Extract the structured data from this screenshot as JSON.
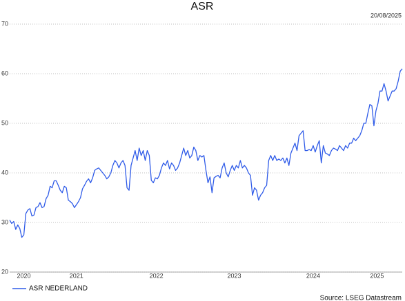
{
  "chart_data": {
    "type": "line",
    "title": "ASR",
    "date": "20/08/2025",
    "source": "Source: LSEG Datastream",
    "xlim": [
      0,
      194
    ],
    "xticks": [
      {
        "value": 7,
        "label": "2020"
      },
      {
        "value": 33,
        "label": "2021"
      },
      {
        "value": 72.5,
        "label": "2022"
      },
      {
        "value": 111,
        "label": "2023"
      },
      {
        "value": 150,
        "label": "2024"
      },
      {
        "value": 181.5,
        "label": "2025"
      }
    ],
    "ylim": [
      20,
      70
    ],
    "yticks": [
      20,
      30,
      40,
      50,
      60,
      70
    ],
    "grid": true,
    "legend": "bottom-left",
    "series": [
      {
        "name": "ASR NEDERLAND",
        "color": "#2f5be8",
        "values": [
          30.5,
          29.8,
          30.2,
          28.6,
          29.5,
          28.8,
          27.0,
          27.5,
          31.8,
          32.5,
          32.8,
          31.3,
          31.5,
          33.0,
          33.2,
          34.0,
          33.0,
          33.2,
          34.8,
          35.5,
          37.3,
          37.0,
          38.4,
          38.4,
          37.5,
          36.5,
          36.0,
          37.3,
          37.0,
          34.5,
          34.2,
          33.8,
          33.0,
          33.6,
          34.2,
          35.0,
          36.8,
          37.5,
          38.3,
          38.8,
          38.0,
          39.0,
          40.5,
          40.8,
          41.0,
          40.5,
          40.0,
          39.5,
          38.8,
          39.2,
          40.0,
          41.5,
          42.5,
          42.0,
          41.0,
          42.0,
          42.5,
          41.5,
          37.0,
          36.5,
          41.5,
          43.0,
          44.5,
          42.5,
          45.0,
          43.5,
          44.5,
          42.5,
          44.5,
          43.5,
          38.5,
          38.0,
          39.0,
          38.8,
          39.5,
          41.0,
          42.0,
          41.5,
          42.5,
          40.8,
          42.0,
          41.5,
          40.5,
          41.0,
          42.0,
          43.5,
          45.0,
          43.5,
          44.5,
          43.0,
          43.5,
          45.2,
          44.5,
          42.5,
          43.5,
          43.2,
          43.5,
          40.5,
          38.0,
          39.2,
          36.0,
          39.0,
          39.3,
          39.5,
          39.0,
          41.0,
          42.0,
          40.0,
          39.2,
          40.5,
          41.5,
          40.5,
          41.5,
          41.0,
          42.5,
          41.0,
          41.5,
          41.0,
          40.0,
          39.5,
          35.5,
          37.0,
          36.5,
          34.5,
          35.5,
          36.0,
          37.0,
          37.5,
          42.5,
          43.5,
          42.5,
          43.5,
          42.5,
          42.8,
          42.5,
          43.0,
          42.0,
          43.0,
          41.5,
          44.0,
          45.0,
          46.0,
          44.5,
          47.5,
          48.0,
          48.5,
          44.5,
          44.5,
          44.7,
          44.5,
          45.5,
          44.2,
          45.5,
          46.5,
          42.0,
          45.5,
          44.0,
          43.8,
          43.5,
          44.5,
          45.0,
          44.8,
          44.5,
          45.5,
          45.0,
          44.5,
          45.5,
          45.0,
          46.0,
          46.0,
          47.0,
          46.5,
          47.0,
          47.5,
          48.5,
          50.0,
          50.0,
          52.0,
          53.8,
          53.5,
          49.5,
          52.5,
          54.0,
          56.5,
          56.5,
          58.0,
          56.5,
          54.5,
          55.5,
          56.5,
          56.5,
          57.0,
          58.5,
          60.5,
          61.0
        ]
      }
    ]
  }
}
